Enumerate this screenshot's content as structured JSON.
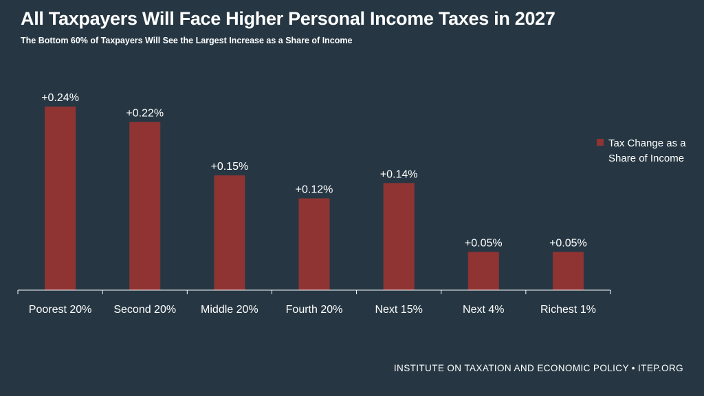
{
  "chart_data": {
    "type": "bar",
    "title": "All Taxpayers Will Face Higher Personal Income Taxes in 2027",
    "subtitle": "The Bottom 60% of Taxpayers Will See the Largest Increase as a Share of Income",
    "categories": [
      "Poorest 20%",
      "Second 20%",
      "Middle 20%",
      "Fourth 20%",
      "Next 15%",
      "Next 4%",
      "Richest 1%"
    ],
    "series": [
      {
        "name": "Tax Change as a Share of Income",
        "values": [
          0.24,
          0.22,
          0.15,
          0.12,
          0.14,
          0.05,
          0.05
        ],
        "labels": [
          "+0.24%",
          "+0.22%",
          "+0.15%",
          "+0.12%",
          "+0.14%",
          "+0.05%",
          "+0.05%"
        ]
      }
    ],
    "xlabel": "",
    "ylabel": "",
    "ylim": [
      0,
      0.24
    ],
    "grid": false,
    "legend_position": "right",
    "colors": {
      "bar": "#8f3433",
      "background": "#263743",
      "axis": "#ffffff"
    }
  },
  "legend": {
    "label": "Tax Change as a Share of Income"
  },
  "footer": {
    "source": "INSTITUTE ON TAXATION AND ECONOMIC POLICY • ITEP.ORG"
  }
}
